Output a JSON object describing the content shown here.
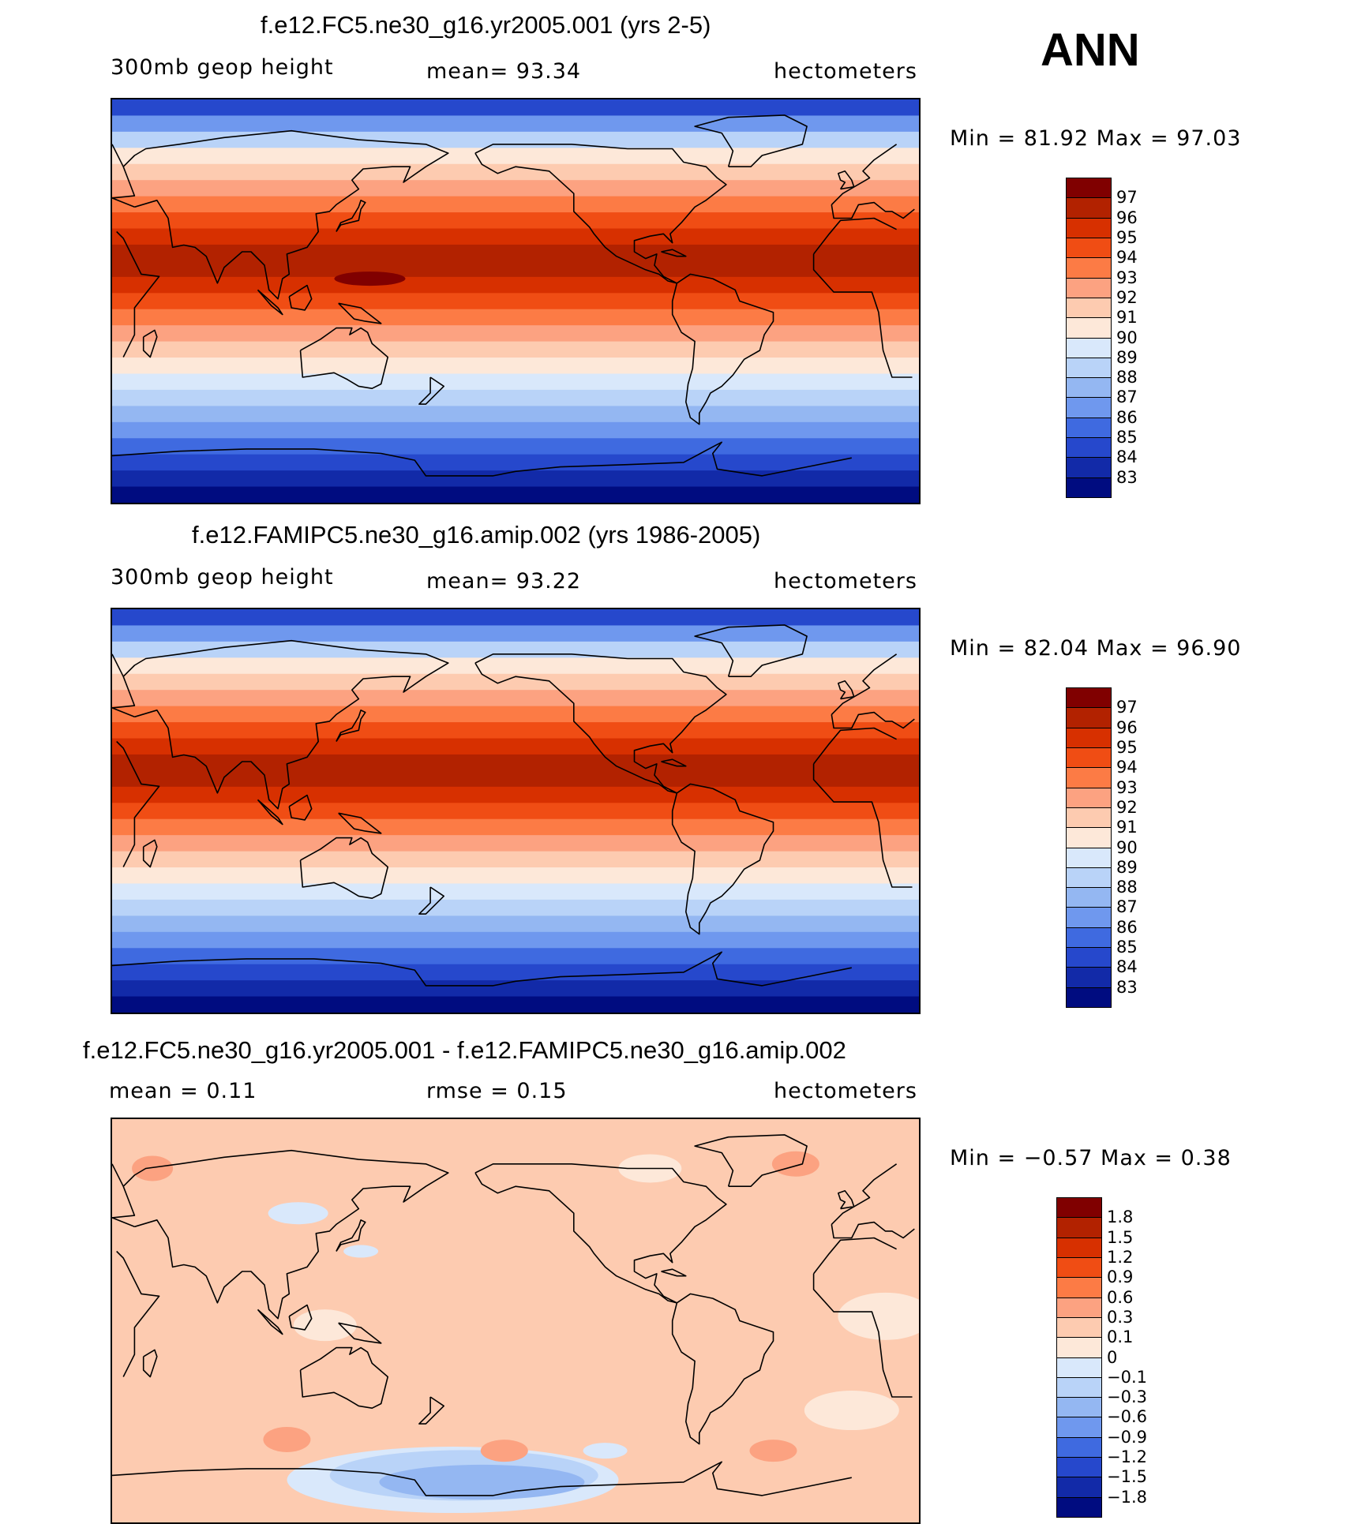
{
  "figure_label": "ANN",
  "panels": [
    {
      "title": "f.e12.FC5.ne30_g16.yr2005.001 (yrs 2-5)",
      "left_label": "300mb  geop  height",
      "center_label": "mean=   93.34",
      "units": "hectometers",
      "minmax": "Min  =    81.92  Max  =    97.03",
      "colorbar": {
        "ticks": [
          "97",
          "96",
          "95",
          "94",
          "93",
          "92",
          "91",
          "90",
          "89",
          "88",
          "87",
          "86",
          "85",
          "84",
          "83"
        ],
        "colors": [
          "#800000",
          "#b22200",
          "#d73000",
          "#f04d14",
          "#fc7b45",
          "#fca281",
          "#fdcbb0",
          "#fde8d9",
          "#d9e8fb",
          "#b9d3f8",
          "#94b7f2",
          "#6f98ee",
          "#3f6ae0",
          "#2648cc",
          "#122aa8",
          "#000c80"
        ]
      },
      "chart_data": {
        "type": "heatmap",
        "variable": "300mb geop height",
        "units": "hectometers",
        "mean": 93.34,
        "min": 81.92,
        "max": 97.03,
        "levels": [
          83,
          84,
          85,
          86,
          87,
          88,
          89,
          90,
          91,
          92,
          93,
          94,
          95,
          96,
          97
        ],
        "pattern": "zonal",
        "band_values": [
          84.5,
          86.5,
          88.5,
          90.5,
          91.5,
          92.5,
          93.5,
          94.5,
          95.5,
          96.5,
          96.5,
          95.5,
          94.5,
          93.5,
          92.5,
          91.5,
          90.5,
          89.5,
          88.5,
          87.5,
          86.5,
          85.5,
          84.5,
          83.5,
          82.5
        ],
        "blobs": [
          {
            "value": 97.0,
            "lon": 145,
            "lat": 10
          }
        ]
      }
    },
    {
      "title": "f.e12.FAMIPC5.ne30_g16.amip.002 (yrs 1986-2005)",
      "left_label": "300mb  geop  height",
      "center_label": "mean=   93.22",
      "units": "hectometers",
      "minmax": "Min  =    82.04  Max  =    96.90",
      "colorbar": {
        "ticks": [
          "97",
          "96",
          "95",
          "94",
          "93",
          "92",
          "91",
          "90",
          "89",
          "88",
          "87",
          "86",
          "85",
          "84",
          "83"
        ],
        "colors": [
          "#800000",
          "#b22200",
          "#d73000",
          "#f04d14",
          "#fc7b45",
          "#fca281",
          "#fdcbb0",
          "#fde8d9",
          "#d9e8fb",
          "#b9d3f8",
          "#94b7f2",
          "#6f98ee",
          "#3f6ae0",
          "#2648cc",
          "#122aa8",
          "#000c80"
        ]
      },
      "chart_data": {
        "type": "heatmap",
        "variable": "300mb geop height",
        "units": "hectometers",
        "mean": 93.22,
        "min": 82.04,
        "max": 96.9,
        "levels": [
          83,
          84,
          85,
          86,
          87,
          88,
          89,
          90,
          91,
          92,
          93,
          94,
          95,
          96,
          97
        ],
        "pattern": "zonal",
        "band_values": [
          84.5,
          86.5,
          88.5,
          90.5,
          91.5,
          92.5,
          93.5,
          94.5,
          95.5,
          96.5,
          96.5,
          95.5,
          94.5,
          93.5,
          92.5,
          91.5,
          90.5,
          89.5,
          88.5,
          87.5,
          86.5,
          85.5,
          84.5,
          83.5,
          82.5
        ],
        "blobs": []
      }
    },
    {
      "title": "f.e12.FC5.ne30_g16.yr2005.001 - f.e12.FAMIPC5.ne30_g16.amip.002",
      "left_label": "mean  =     0.11",
      "center_label": "rmse  =     0.15",
      "units": "hectometers",
      "minmax": "Min  =    −0.57  Max  =      0.38",
      "colorbar": {
        "ticks": [
          "1.8",
          "1.5",
          "1.2",
          "0.9",
          "0.6",
          "0.3",
          "0.1",
          "0",
          "−0.1",
          "−0.3",
          "−0.6",
          "−0.9",
          "−1.2",
          "−1.5",
          "−1.8"
        ],
        "colors": [
          "#800000",
          "#b22200",
          "#d73000",
          "#f04d14",
          "#fc7b45",
          "#fca281",
          "#fdcbb0",
          "#fde8d9",
          "#d9e8fb",
          "#b9d3f8",
          "#94b7f2",
          "#6f98ee",
          "#3f6ae0",
          "#2648cc",
          "#122aa8",
          "#000c80"
        ]
      },
      "chart_data": {
        "type": "heatmap",
        "variable": "difference",
        "units": "hectometers",
        "mean": 0.11,
        "rmse": 0.15,
        "min": -0.57,
        "max": 0.38,
        "levels": [
          -1.8,
          -1.5,
          -1.2,
          -0.9,
          -0.6,
          -0.3,
          -0.1,
          0,
          0.1,
          0.3,
          0.6,
          0.9,
          1.2,
          1.5,
          1.8
        ],
        "pattern": "field",
        "background_value": 0.2,
        "blobs": [
          {
            "value": -0.05,
            "lon": -178,
            "lat": -71
          },
          {
            "value": -0.2,
            "lon": -173,
            "lat": -69
          },
          {
            "value": -0.4,
            "lon": -165,
            "lat": -72
          },
          {
            "value": -0.05,
            "lon": 113,
            "lat": 48
          },
          {
            "value": -0.05,
            "lon": 141,
            "lat": 31
          },
          {
            "value": -0.05,
            "lon": -110,
            "lat": -58
          },
          {
            "value": 0.05,
            "lon": 15,
            "lat": 2
          },
          {
            "value": 0.05,
            "lon": 125,
            "lat": -2
          },
          {
            "value": 0.05,
            "lon": 0,
            "lat": -40
          },
          {
            "value": 0.05,
            "lon": -90,
            "lat": 68
          },
          {
            "value": 0.35,
            "lon": 108,
            "lat": -53
          },
          {
            "value": 0.35,
            "lon": 48,
            "lat": 68
          },
          {
            "value": 0.35,
            "lon": -155,
            "lat": -58
          },
          {
            "value": 0.35,
            "lon": -35,
            "lat": -58
          },
          {
            "value": 0.35,
            "lon": -25,
            "lat": 70
          }
        ]
      }
    }
  ]
}
